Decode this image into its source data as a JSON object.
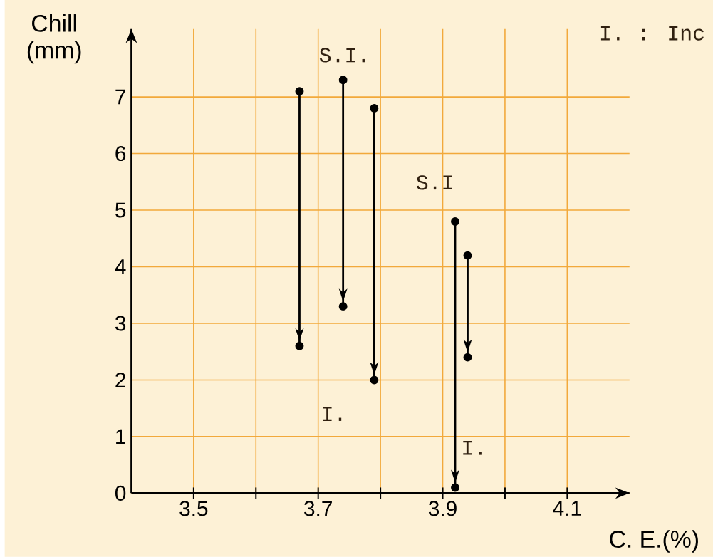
{
  "chart_data": {
    "type": "line",
    "xlabel": "C. E.(%)",
    "ylabel": "Chill (mm)",
    "xlim": [
      3.4,
      4.2
    ],
    "ylim": [
      0,
      8.2
    ],
    "xticks": [
      {
        "value": 3.5,
        "label": "3.5"
      },
      {
        "value": 3.6,
        "label": null
      },
      {
        "value": 3.7,
        "label": "3.7"
      },
      {
        "value": 3.8,
        "label": null
      },
      {
        "value": 3.9,
        "label": "3.9"
      },
      {
        "value": 4.0,
        "label": null
      },
      {
        "value": 4.1,
        "label": "4.1"
      }
    ],
    "yticks": [
      0,
      1,
      2,
      3,
      4,
      5,
      6,
      7
    ],
    "grid": true,
    "marker": "circle",
    "line_style": "solid",
    "series": [
      {
        "color": "#000000",
        "x": [
          3.67,
          3.67
        ],
        "values": [
          7.1,
          2.6
        ]
      },
      {
        "color": "#000000",
        "x": [
          3.74,
          3.74
        ],
        "values": [
          7.3,
          3.3
        ]
      },
      {
        "color": "#000000",
        "x": [
          3.79,
          3.79
        ],
        "values": [
          6.8,
          2.0
        ]
      },
      {
        "color": "#000000",
        "x": [
          3.92,
          3.92
        ],
        "values": [
          4.8,
          0.1
        ]
      },
      {
        "color": "#000000",
        "x": [
          3.94,
          3.94
        ],
        "values": [
          4.2,
          2.4
        ]
      }
    ],
    "annotations": [
      "S.I.",
      "S.I",
      "I.",
      "I.",
      "I. : Inc"
    ]
  }
}
